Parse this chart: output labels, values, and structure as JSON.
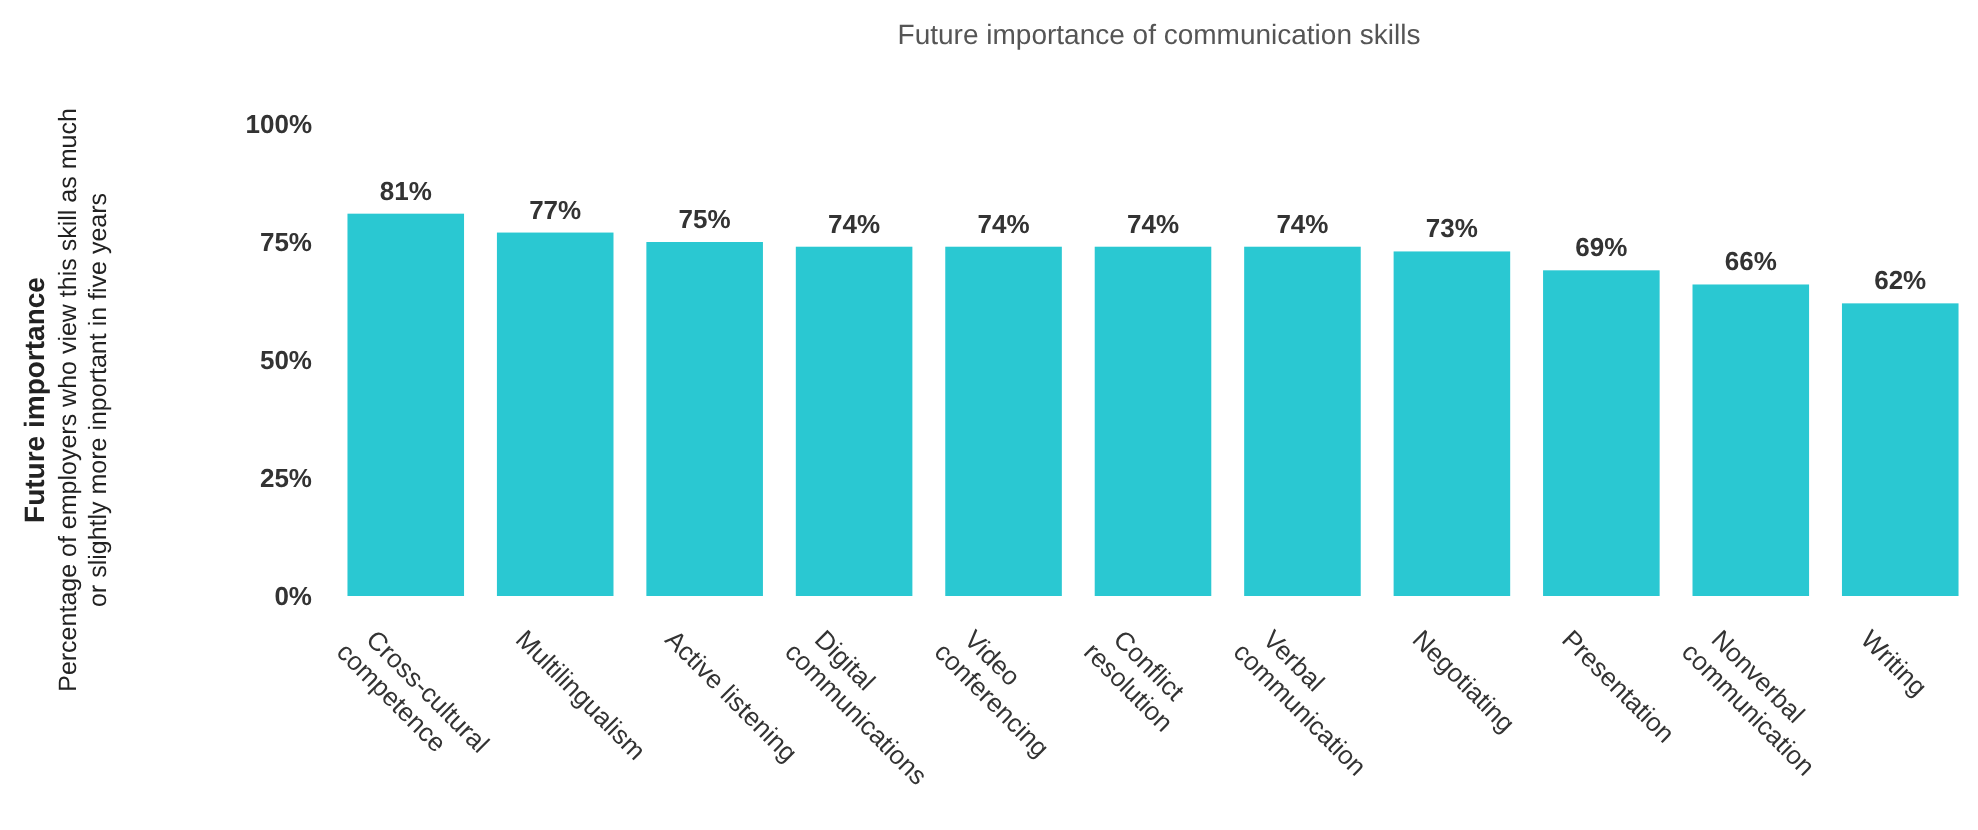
{
  "chart_data": {
    "type": "bar",
    "title": "Future importance of communication skills",
    "annotations": [
      "Future importance",
      "Percentage of employers who view this skill as much or slightly more inportant in five years"
    ],
    "categories": [
      "Cross-cultural competence",
      "Multilingualism",
      "Active listening",
      "Digital communications",
      "Video conferencing",
      "Conflict resolution",
      "Verbal communication",
      "Negotiating",
      "Presentation",
      "Nonverbal communication",
      "Writing"
    ],
    "values": [
      81,
      77,
      75,
      74,
      74,
      74,
      74,
      73,
      69,
      66,
      62
    ],
    "value_labels": [
      "81%",
      "77%",
      "75%",
      "74%",
      "74%",
      "74%",
      "74%",
      "73%",
      "69%",
      "66%",
      "62%"
    ],
    "color": "#2ac8d2",
    "ylim": [
      0,
      100
    ],
    "yticks": [
      {
        "value": 0,
        "label": "0%"
      },
      {
        "value": 25,
        "label": "25%"
      },
      {
        "value": 50,
        "label": "50%"
      },
      {
        "value": 75,
        "label": "75%"
      },
      {
        "value": 100,
        "label": "100%"
      }
    ],
    "grid": false
  }
}
